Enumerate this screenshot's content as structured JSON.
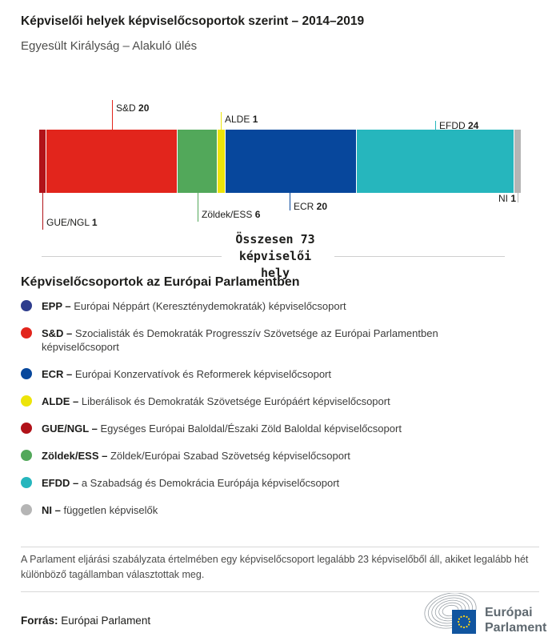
{
  "header": {
    "title": "Képviselői helyek képviselőcsoportok szerint – 2014–2019",
    "subtitle": "Egyesült Királyság – Alakuló ülés"
  },
  "chart_data": {
    "type": "bar",
    "stacked": true,
    "orientation": "horizontal",
    "title": "Képviselői helyek képviselőcsoportok szerint – 2014–2019",
    "subtitle": "Egyesült Királyság – Alakuló ülés",
    "categories": [
      "GUE/NGL",
      "S&D",
      "Zöldek/ESS",
      "ALDE",
      "ECR",
      "EFDD",
      "NI"
    ],
    "values": [
      1,
      20,
      6,
      1,
      20,
      24,
      1
    ],
    "total": 73,
    "total_label": "Összesen 73 képviselői hely",
    "segments": [
      {
        "group": "GUE/NGL",
        "seats": 1,
        "color": "#b11219"
      },
      {
        "group": "S&D",
        "seats": 20,
        "color": "#e2251c"
      },
      {
        "group": "Zöldek/ESS",
        "seats": 6,
        "color": "#52a85a"
      },
      {
        "group": "ALDE",
        "seats": 1,
        "color": "#ede409"
      },
      {
        "group": "ECR",
        "seats": 20,
        "color": "#07479c"
      },
      {
        "group": "EFDD",
        "seats": 24,
        "color": "#26b6bd"
      },
      {
        "group": "NI",
        "seats": 1,
        "color": "#b5b5b5"
      }
    ]
  },
  "legend": {
    "heading": "Képviselőcsoportok az Európai Parlamentben",
    "items": [
      {
        "label": "EPP –",
        "desc": "Európai Néppárt (Kereszténydemokraták) képviselőcsoport",
        "color": "#2e3d8d"
      },
      {
        "label": "S&D –",
        "desc": "Szocialisták és Demokraták Progresszív Szövetsége az Európai Parlamentben képviselőcsoport",
        "color": "#e2251c"
      },
      {
        "label": "ECR –",
        "desc": "Európai Konzervatívok és Reformerek képviselőcsoport",
        "color": "#07479c"
      },
      {
        "label": "ALDE –",
        "desc": "Liberálisok és Demokraták Szövetsége Európáért képviselőcsoport",
        "color": "#ede409"
      },
      {
        "label": "GUE/NGL –",
        "desc": "Egységes Európai Baloldal/Északi Zöld Baloldal képviselőcsoport",
        "color": "#b11219"
      },
      {
        "label": "Zöldek/ESS –",
        "desc": "Zöldek/Európai Szabad Szövetség képviselőcsoport",
        "color": "#52a85a"
      },
      {
        "label": "EFDD –",
        "desc": "a Szabadság és Demokrácia Európája képviselőcsoport",
        "color": "#26b6bd"
      },
      {
        "label": "NI –",
        "desc": "független képviselők",
        "color": "#b5b5b5"
      }
    ]
  },
  "footer": {
    "note": "A Parlament eljárási szabályzata értelmében egy képviselőcsoport legalább 23 képviselőből áll, akiket legalább hét különböző tagállamban választottak meg.",
    "source_label": "Forrás:",
    "source_value": " Európai Parlament",
    "logo_line1": "Európai",
    "logo_line2": "Parlament"
  }
}
